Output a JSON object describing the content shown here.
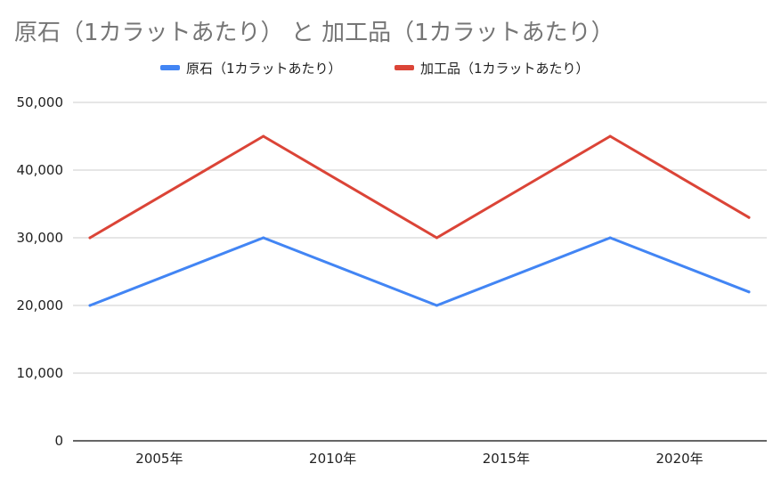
{
  "chart_data": {
    "type": "line",
    "title": "原石（1カラットあたり） と 加工品（1カラットあたり）",
    "xlabel": "",
    "ylabel": "",
    "x": [
      2003,
      2008,
      2013,
      2018,
      2022
    ],
    "xlim": [
      2003,
      2022
    ],
    "xticks": [
      "2005年",
      "2010年",
      "2015年",
      "2020年"
    ],
    "ylim": [
      0,
      50000
    ],
    "yticks": [
      "0",
      "10,000",
      "20,000",
      "30,000",
      "40,000",
      "50,000"
    ],
    "grid": true,
    "legend_position": "top-center",
    "series": [
      {
        "name": "原石（1カラットあたり）",
        "color": "#4285f4",
        "values": [
          20000,
          30000,
          20000,
          30000,
          22000
        ]
      },
      {
        "name": "加工品（1カラットあたり）",
        "color": "#db4437",
        "values": [
          30000,
          45000,
          30000,
          45000,
          33000
        ]
      }
    ]
  }
}
